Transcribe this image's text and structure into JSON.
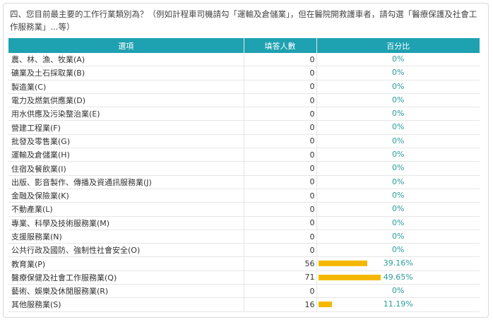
{
  "question": "四、您目前最主要的工作行業類別為？（例如計程車司機請勾「運輸及倉儲業」，但在醫院開救護車者，請勾選「醫療保護及社會工作服務業」...等）",
  "table": {
    "headers": [
      "選項",
      "填答人數",
      "百分比"
    ],
    "accent_color": "#1ea1b0",
    "bar_color": "#f5b800",
    "rows": [
      {
        "option": "農、林、漁、牧業(A)",
        "count": "0",
        "percent": "0%",
        "fraction": 0
      },
      {
        "option": "礦業及土石採取業(B)",
        "count": "0",
        "percent": "0%",
        "fraction": 0
      },
      {
        "option": "製造業(C)",
        "count": "0",
        "percent": "0%",
        "fraction": 0
      },
      {
        "option": "電力及燃氣供應業(D)",
        "count": "0",
        "percent": "0%",
        "fraction": 0
      },
      {
        "option": "用水供應及污染整治業(E)",
        "count": "0",
        "percent": "0%",
        "fraction": 0
      },
      {
        "option": "營建工程業(F)",
        "count": "0",
        "percent": "0%",
        "fraction": 0
      },
      {
        "option": "批發及零售業(G)",
        "count": "0",
        "percent": "0%",
        "fraction": 0
      },
      {
        "option": "運輸及倉儲業(H)",
        "count": "0",
        "percent": "0%",
        "fraction": 0
      },
      {
        "option": "住宿及餐飲業(I)",
        "count": "0",
        "percent": "0%",
        "fraction": 0
      },
      {
        "option": "出版、影音製作、傳播及資通訊服務業(J)",
        "count": "0",
        "percent": "0%",
        "fraction": 0
      },
      {
        "option": "金融及保險業(K)",
        "count": "0",
        "percent": "0%",
        "fraction": 0
      },
      {
        "option": "不動產業(L)",
        "count": "0",
        "percent": "0%",
        "fraction": 0
      },
      {
        "option": "專業、科學及技術服務業(M)",
        "count": "0",
        "percent": "0%",
        "fraction": 0
      },
      {
        "option": "支援服務業(N)",
        "count": "0",
        "percent": "0%",
        "fraction": 0
      },
      {
        "option": "公共行政及國防、強制性社會安全(O)",
        "count": "0",
        "percent": "0%",
        "fraction": 0
      },
      {
        "option": "教育業(P)",
        "count": "56",
        "percent": "39.16%",
        "fraction": 0.3916
      },
      {
        "option": "醫療保健及社會工作服務業(Q)",
        "count": "71",
        "percent": "49.65%",
        "fraction": 0.4965
      },
      {
        "option": "藝術、娛樂及休閒服務業(R)",
        "count": "0",
        "percent": "0%",
        "fraction": 0
      },
      {
        "option": "其他服務業(S)",
        "count": "16",
        "percent": "11.19%",
        "fraction": 0.1119
      }
    ]
  }
}
